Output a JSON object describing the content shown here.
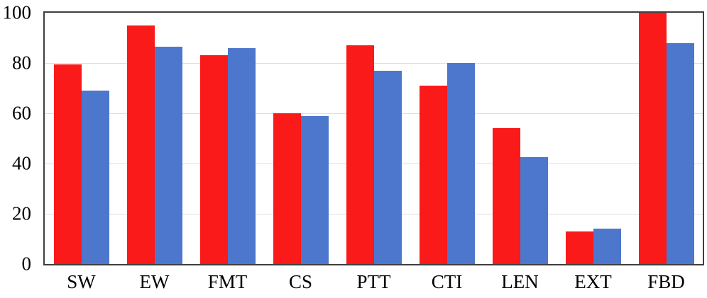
{
  "chart_data": {
    "type": "bar",
    "title": "",
    "xlabel": "",
    "ylabel": "",
    "categories": [
      "SW",
      "EW",
      "FMT",
      "CS",
      "PTT",
      "CTI",
      "LEN",
      "EXT",
      "FBD"
    ],
    "series": [
      {
        "name": "series-red",
        "color": "#fa1a1a",
        "values": [
          79.5,
          95,
          83,
          60,
          87,
          71,
          54,
          13,
          100
        ]
      },
      {
        "name": "series-blue",
        "color": "#4c77cc",
        "values": [
          69,
          86.5,
          86,
          59,
          77,
          80,
          42.5,
          14,
          88
        ]
      }
    ],
    "ylim": [
      0,
      100
    ],
    "yticks": [
      0,
      20,
      40,
      60,
      80,
      100
    ],
    "grid": "horizontal",
    "gridline_color": "#dedede",
    "frame_color": "#3f3f3f",
    "legend": "none"
  }
}
